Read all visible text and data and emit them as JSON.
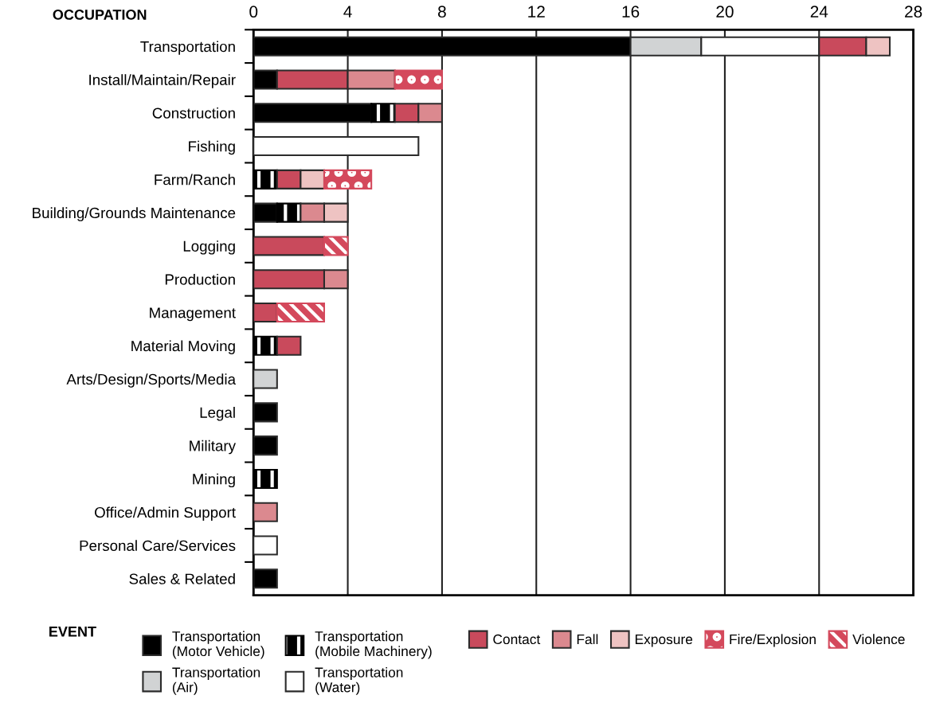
{
  "chart_data": {
    "type": "bar",
    "orientation": "horizontal",
    "stacked": true,
    "ylabel": "OCCUPATION",
    "legend_title": "EVENT",
    "categories": [
      "Transportation",
      "Install/Maintain/Repair",
      "Construction",
      "Fishing",
      "Farm/Ranch",
      "Building/Grounds Maintenance",
      "Logging",
      "Production",
      "Management",
      "Material Moving",
      "Arts/Design/Sports/Media",
      "Legal",
      "Military",
      "Mining",
      "Office/Admin Support",
      "Personal Care/Services",
      "Sales & Related"
    ],
    "xlim": [
      0,
      28
    ],
    "xticks": [
      0,
      4,
      8,
      12,
      16,
      20,
      24,
      28
    ],
    "grid": "x",
    "legend": "bottom",
    "series": [
      {
        "name": "Transportation\n(Motor Vehicle)",
        "color": "#000000",
        "values": [
          16,
          1,
          5,
          0,
          0,
          1,
          0,
          0,
          0,
          0,
          0,
          1,
          1,
          0,
          0,
          0,
          1
        ]
      },
      {
        "name": "Transportation\n(Mobile Machinery)",
        "color": "#000000",
        "values": [
          0,
          0,
          1,
          0,
          1,
          1,
          0,
          0,
          0,
          1,
          0,
          0,
          0,
          1,
          0,
          0,
          0
        ]
      },
      {
        "name": "Transportation\n(Air)",
        "color": "#d1d3d4",
        "values": [
          3,
          0,
          0,
          0,
          0,
          0,
          0,
          0,
          0,
          0,
          1,
          0,
          0,
          0,
          0,
          0,
          0
        ]
      },
      {
        "name": "Transportation\n(Water)",
        "color": "#ffffff",
        "values": [
          5,
          0,
          0,
          7,
          0,
          0,
          0,
          0,
          0,
          0,
          0,
          0,
          0,
          0,
          0,
          1,
          0
        ]
      },
      {
        "name": "Contact",
        "color": "#c94a5c",
        "values": [
          2,
          3,
          1,
          0,
          1,
          0,
          3,
          3,
          1,
          1,
          0,
          0,
          0,
          0,
          0,
          0,
          0
        ]
      },
      {
        "name": "Fall",
        "color": "#db898f",
        "values": [
          0,
          2,
          1,
          0,
          0,
          1,
          0,
          1,
          0,
          0,
          0,
          0,
          0,
          0,
          1,
          0,
          0
        ]
      },
      {
        "name": "Exposure",
        "color": "#eec3c2",
        "values": [
          1,
          0,
          0,
          0,
          1,
          1,
          0,
          0,
          0,
          0,
          0,
          0,
          0,
          0,
          0,
          0,
          0
        ]
      },
      {
        "name": "Fire/Explosion",
        "color": "#d4495c",
        "values": [
          0,
          2,
          0,
          0,
          2,
          0,
          0,
          0,
          0,
          0,
          0,
          0,
          0,
          0,
          0,
          0,
          0
        ]
      },
      {
        "name": "Violence",
        "color": "#d4495c",
        "values": [
          0,
          0,
          0,
          0,
          0,
          0,
          1,
          0,
          2,
          0,
          0,
          0,
          0,
          0,
          0,
          0,
          0
        ]
      }
    ]
  }
}
